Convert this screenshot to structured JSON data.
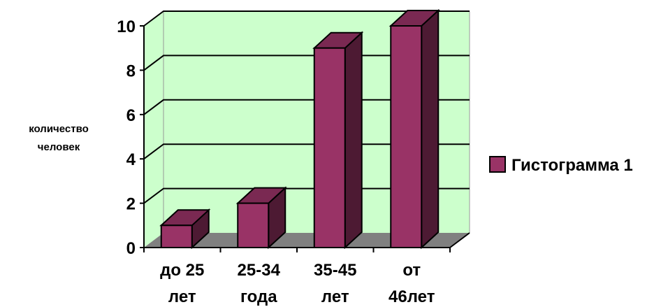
{
  "chart_data": {
    "type": "bar",
    "style": "3d",
    "categories": [
      [
        "до 25",
        "лет"
      ],
      [
        "25-34",
        "года"
      ],
      [
        "35-45",
        "лет"
      ],
      [
        "от",
        "46лет"
      ]
    ],
    "series": [
      {
        "name": "Гистограмма 1",
        "values": [
          1,
          2,
          9,
          10
        ]
      }
    ],
    "ylabel": [
      "количество",
      "человек"
    ],
    "ylim": [
      0,
      10
    ],
    "yticks": [
      0,
      2,
      4,
      6,
      8,
      10
    ],
    "grid": true,
    "legend": "right",
    "colors": {
      "bar_front": "#993366",
      "bar_side": "#4d1a33",
      "bar_top": "#7a2952",
      "back_wall": "#ccffcc",
      "floor": "#808080",
      "outline": "#000000"
    }
  }
}
